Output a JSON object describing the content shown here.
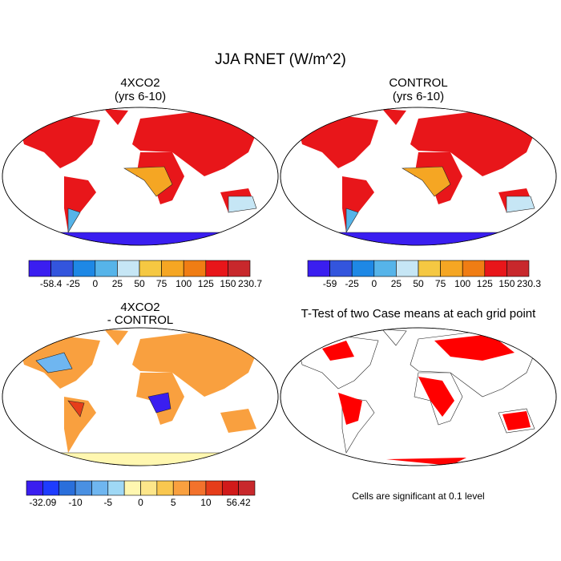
{
  "title": "JJA RNET (W/m^2)",
  "panels": [
    {
      "title": [
        "4XCO2",
        "(yrs 6-10)"
      ]
    },
    {
      "title": [
        "CONTROL",
        "(yrs 6-10)"
      ]
    },
    {
      "title": [
        "4XCO2",
        "- CONTROL"
      ]
    },
    {
      "title": [
        "T-Test of two Case means at each grid point"
      ],
      "note": "Cells are significant at 0.1 level"
    }
  ],
  "colorbars": [
    {
      "colors": [
        "#3a1ef0",
        "#3355dd",
        "#1e88e5",
        "#56b4e9",
        "#c6e6f5",
        "#f5c842",
        "#f5a623",
        "#f07d14",
        "#e8161a",
        "#c8282c"
      ],
      "labels": [
        -58.4,
        -25,
        0,
        25,
        50,
        75,
        100,
        125,
        150,
        230.7
      ]
    },
    {
      "colors": [
        "#3a1ef0",
        "#3355dd",
        "#1e88e5",
        "#56b4e9",
        "#c6e6f5",
        "#f5c842",
        "#f5a623",
        "#f07d14",
        "#e8161a",
        "#c8282c"
      ],
      "labels": [
        -59,
        -25,
        0,
        25,
        50,
        75,
        100,
        125,
        150,
        230.3
      ]
    },
    {
      "colors": [
        "#3a1ef0",
        "#1e3cff",
        "#2a6fdb",
        "#4a90e2",
        "#6fb6f0",
        "#9fd8f5",
        "#fff7b0",
        "#fde68a",
        "#f9c74f",
        "#f9a03f",
        "#f3722c",
        "#e63d1a",
        "#d11a1a",
        "#c8282c"
      ],
      "labels": [
        -32.09,
        -10,
        -5,
        0,
        5,
        10,
        56.42
      ]
    }
  ]
}
